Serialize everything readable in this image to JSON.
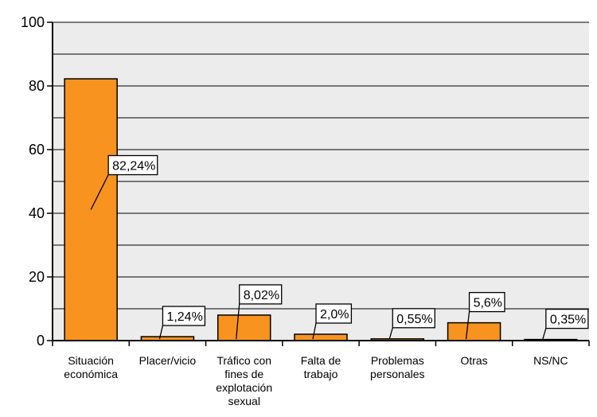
{
  "chart_data": {
    "type": "bar",
    "title": "",
    "xlabel": "",
    "ylabel": "",
    "ylim": [
      0,
      100
    ],
    "yticks": [
      0,
      20,
      40,
      60,
      80,
      100
    ],
    "grid": true,
    "grid_step": 10,
    "categories": [
      [
        "Situación",
        "económica"
      ],
      [
        "Placer/vicio"
      ],
      [
        "Tráfico con",
        "fines de",
        "explotación",
        "sexual"
      ],
      [
        "Falta de",
        "trabajo"
      ],
      [
        "Problemas",
        "personales"
      ],
      [
        "Otras"
      ],
      [
        "NS/NC"
      ]
    ],
    "values": [
      82.24,
      1.24,
      8.02,
      2.0,
      0.55,
      5.6,
      0.35
    ],
    "data_labels": [
      "82,24%",
      "1,24%",
      "8,02%",
      "2,0%",
      "0,55%",
      "5,6%",
      "0,35%"
    ],
    "colors": {
      "bar": "#f7931e",
      "plot_bg": "#ececec",
      "grid": "#000000"
    }
  }
}
